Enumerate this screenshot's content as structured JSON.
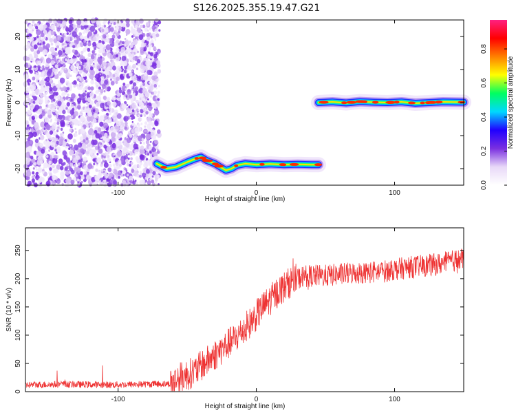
{
  "title": "S126.2025.355.19.47.G21",
  "chart_data": [
    {
      "type": "heatmap",
      "xlabel": "Height of straight line (km)",
      "ylabel": "Frequency (Hz)",
      "xlim": [
        -167,
        150
      ],
      "ylim": [
        -25,
        25
      ],
      "xticks": [
        -100,
        0,
        100
      ],
      "yticks": [
        -20,
        -10,
        0,
        10,
        20
      ],
      "colorbar": {
        "label": "Normalized spectral amplitude",
        "range": [
          0,
          0.97
        ],
        "ticks": [
          "0.0",
          "0.2",
          "0.4",
          "0.6",
          "0.8"
        ],
        "colormap": [
          "#ffffff",
          "#e8d8f8",
          "#7a30e0",
          "#2000ff",
          "#00d8ff",
          "#00ff60",
          "#ffff00",
          "#ff8000",
          "#ff0000",
          "#ff2080"
        ]
      },
      "noise_region_x": [
        -167,
        -70
      ],
      "signal_tracks": [
        {
          "x": [
            -72,
            -65,
            -58,
            -50,
            -44,
            -40,
            -36,
            -30,
            -26,
            -22,
            -18,
            -14,
            -8,
            0,
            10,
            20,
            30,
            40,
            45
          ],
          "y": [
            -18.5,
            -20,
            -19.5,
            -18,
            -17,
            -16.5,
            -17.5,
            -18.5,
            -19.5,
            -20.5,
            -20,
            -19,
            -18.5,
            -18.8,
            -18.6,
            -18.8,
            -18.7,
            -18.8,
            -18.8
          ]
        },
        {
          "x": [
            45,
            55,
            65,
            75,
            85,
            95,
            105,
            115,
            125,
            135,
            150
          ],
          "y": [
            0,
            0.2,
            -0.1,
            0.3,
            0.1,
            0,
            0.2,
            -0.2,
            0,
            0.2,
            0.1
          ]
        }
      ]
    },
    {
      "type": "line",
      "xlabel": "Height of straight line (km)",
      "ylabel": "SNR (10 * v/v)",
      "xlim": [
        -167,
        150
      ],
      "ylim": [
        0,
        290
      ],
      "xticks": [
        -100,
        0,
        100
      ],
      "yticks": [
        0,
        50,
        100,
        150,
        200,
        250
      ],
      "color": "#ee3333",
      "series": [
        {
          "x": [
            -167,
            -140,
            -110,
            -85,
            -62,
            -55,
            -45,
            -35,
            -25,
            -15,
            -5,
            5,
            15,
            25,
            35,
            50,
            70,
            90,
            110,
            130,
            150
          ],
          "y": [
            12,
            13,
            12,
            13,
            14,
            25,
            35,
            55,
            75,
            95,
            120,
            150,
            175,
            195,
            205,
            205,
            210,
            212,
            220,
            225,
            235
          ]
        }
      ]
    }
  ]
}
